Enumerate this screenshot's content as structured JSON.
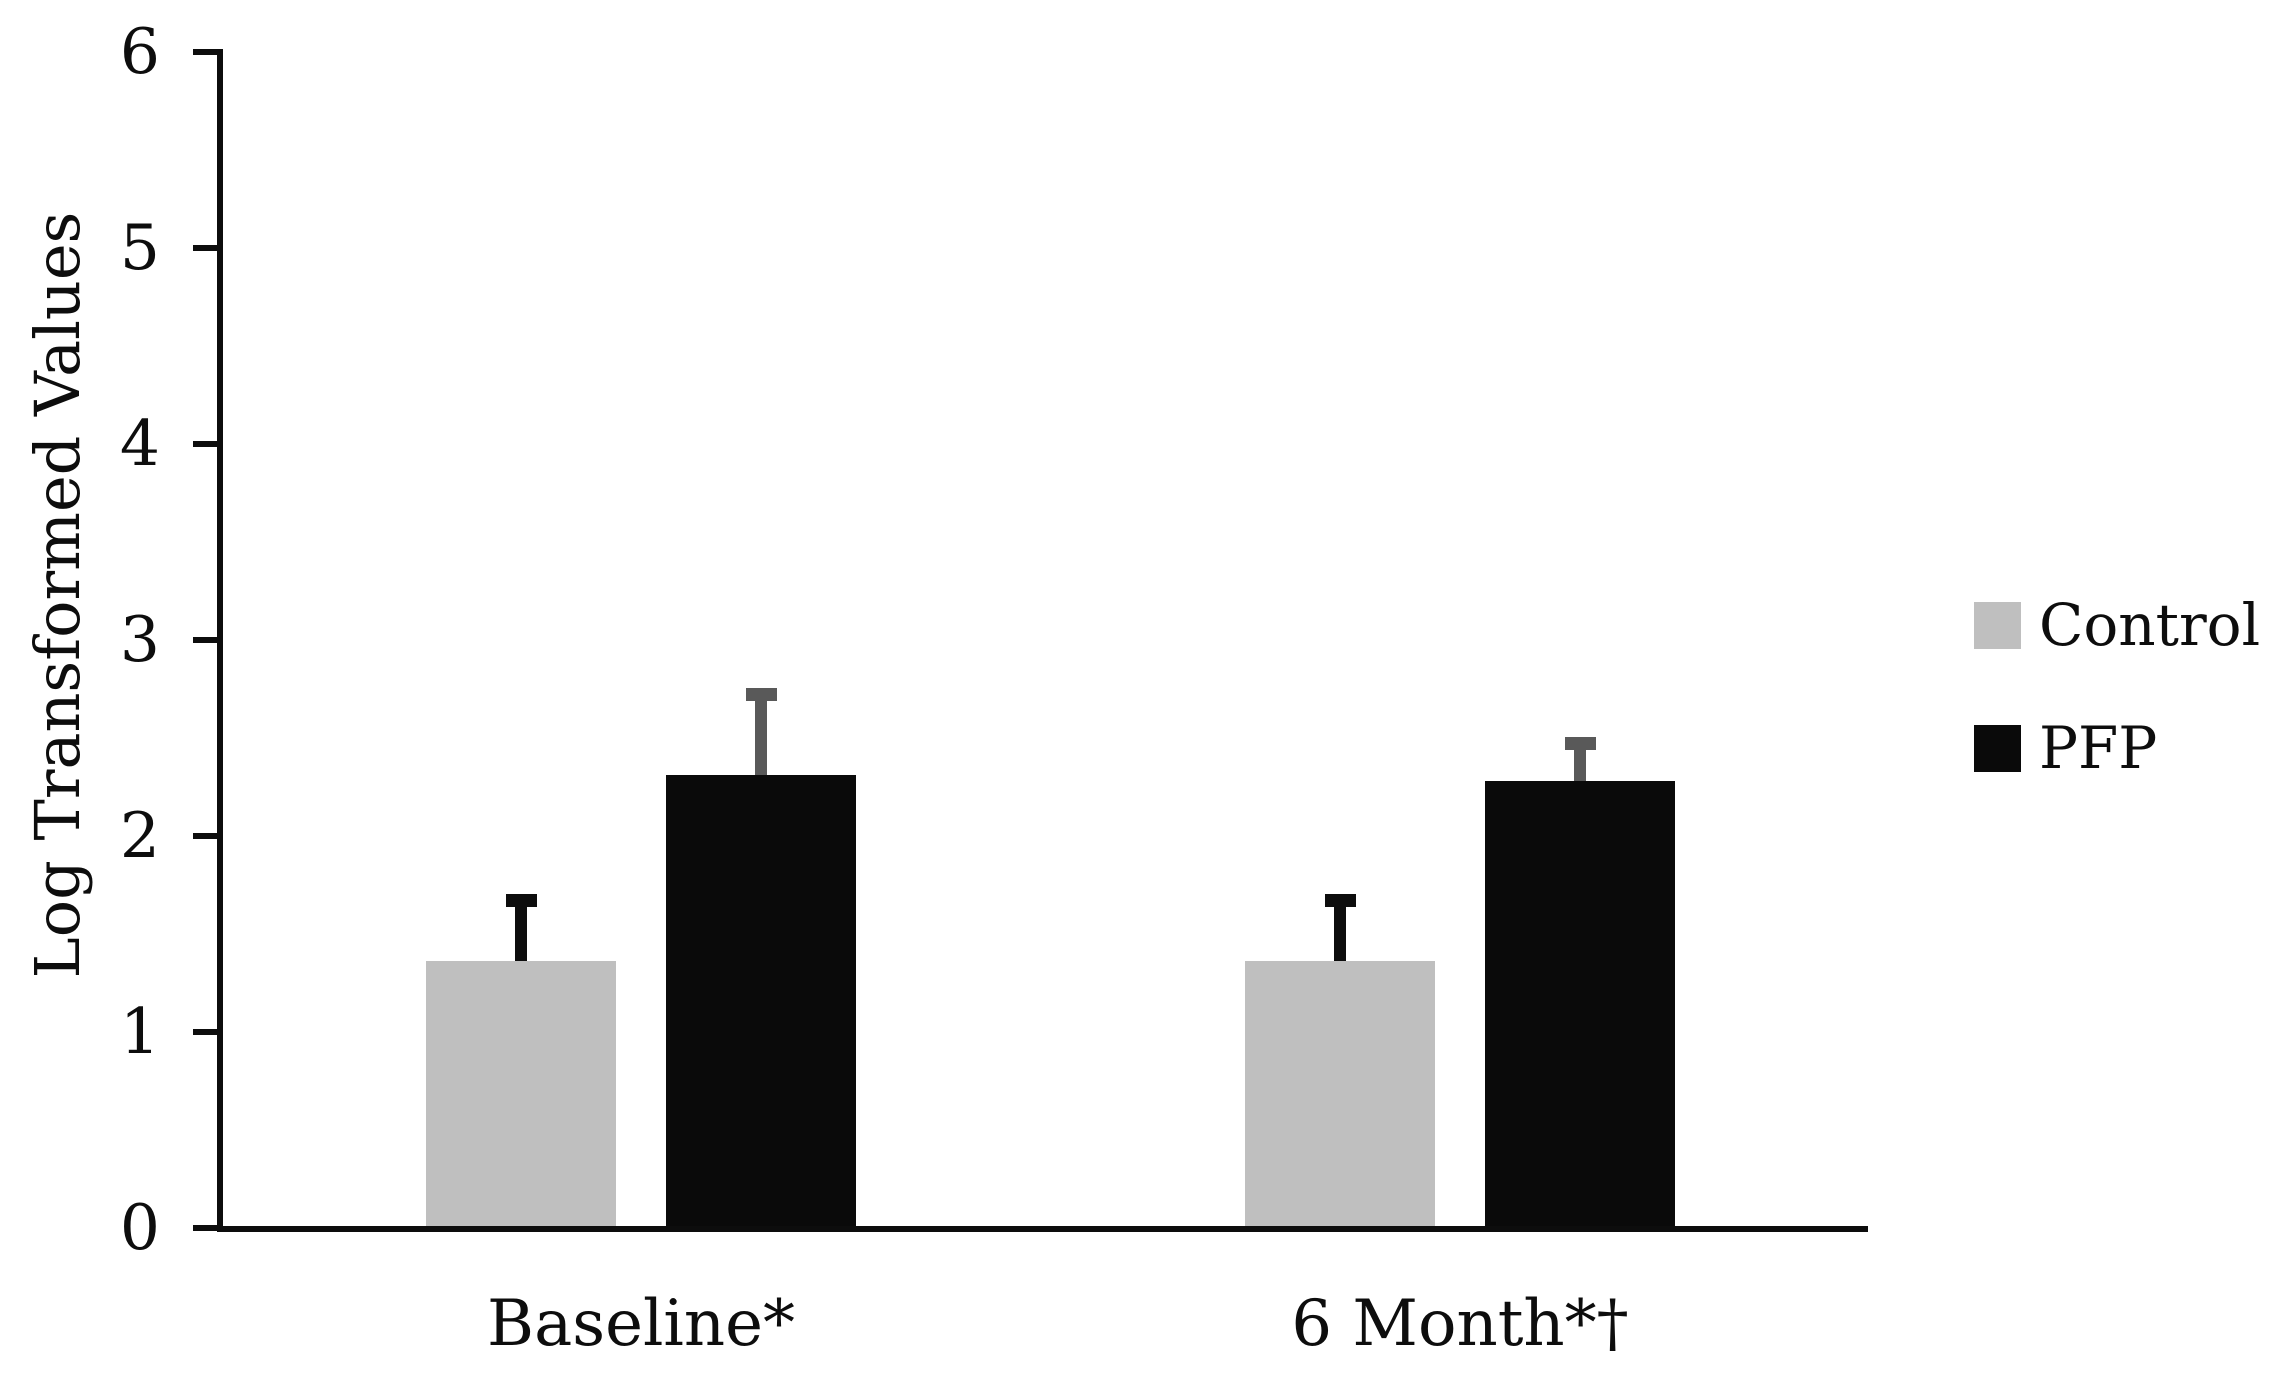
{
  "chart_data": {
    "type": "bar",
    "title": "",
    "ylabel": "Log Transformed Values",
    "xlabel": "",
    "ylim": [
      0,
      6
    ],
    "yticks": [
      0,
      1,
      2,
      3,
      4,
      5,
      6
    ],
    "categories": [
      "Baseline*",
      "6 Month*†"
    ],
    "series": [
      {
        "name": "Control",
        "color": "#bfbfbf",
        "error_color": "#0d0d0d",
        "values": [
          1.36,
          1.36
        ],
        "errors": [
          0.31,
          0.31
        ]
      },
      {
        "name": "PFP",
        "color": "#0a0a0a",
        "error_color": "#595959",
        "values": [
          2.31,
          2.28
        ],
        "errors": [
          0.41,
          0.19
        ]
      }
    ],
    "error_bars": "upper_only",
    "grid": false,
    "legend_position": "right-middle",
    "axis_color": "#0d0d0d",
    "background": "#ffffff"
  }
}
